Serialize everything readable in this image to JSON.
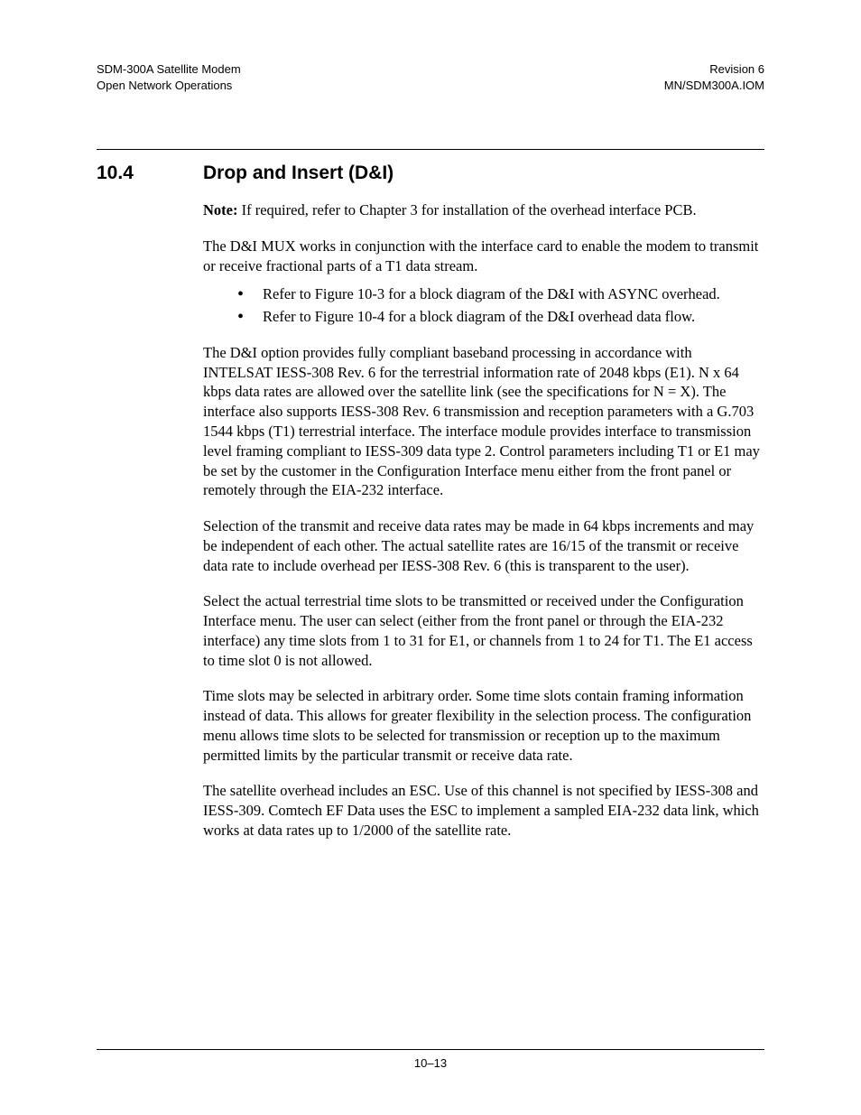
{
  "header": {
    "left_line1": "SDM-300A Satellite Modem",
    "left_line2": "Open Network Operations",
    "right_line1": "Revision 6",
    "right_line2": "MN/SDM300A.IOM"
  },
  "section": {
    "number": "10.4",
    "title": "Drop and Insert (D&I)"
  },
  "note": {
    "label": "Note:",
    "text": " If required, refer to Chapter 3 for installation of the overhead interface PCB."
  },
  "paragraphs": {
    "intro": "The D&I MUX works in conjunction with the interface card to enable the modem to transmit or receive fractional parts of a T1 data stream.",
    "bullets": [
      "Refer to Figure 10-3 for a block diagram of the D&I with ASYNC overhead.",
      "Refer to Figure 10-4 for a block diagram of the D&I overhead data flow."
    ],
    "p1": "The D&I option provides fully compliant baseband processing in accordance with INTELSAT IESS-308 Rev. 6 for the terrestrial information rate of 2048 kbps (E1). N x 64 kbps data rates are allowed over the satellite link (see the specifications for N = X). The interface also supports IESS-308 Rev. 6 transmission and reception parameters with a G.703 1544 kbps (T1) terrestrial interface. The interface module provides interface to transmission level framing compliant to IESS-309 data type 2. Control parameters including T1 or E1 may be set by the customer in the Configuration Interface menu either from the front panel or remotely through the EIA-232 interface.",
    "p2": "Selection of the transmit and receive data rates may be made in 64 kbps increments and may be independent of each other. The actual satellite rates are 16/15 of the transmit or receive data rate to include overhead per IESS-308 Rev. 6 (this is transparent to the user).",
    "p3": "Select the actual terrestrial time slots to be transmitted or received under the Configuration Interface menu. The user can select (either from the front panel or through the EIA-232 interface) any time slots from 1 to 31 for E1, or channels from 1 to 24 for T1. The E1 access to time slot 0 is not allowed.",
    "p4": "Time slots may be selected in arbitrary order. Some time slots contain framing information instead of data. This allows for greater flexibility in the selection process. The configuration menu allows time slots to be selected for transmission or reception up to the maximum permitted limits by the particular transmit or receive data rate.",
    "p5": "The satellite overhead includes an ESC. Use of this channel is not specified by IESS-308 and IESS-309. Comtech EF Data uses the ESC to implement a sampled EIA-232 data link, which works at data rates up to 1/2000 of the satellite rate."
  },
  "footer": {
    "page": "10–13"
  }
}
